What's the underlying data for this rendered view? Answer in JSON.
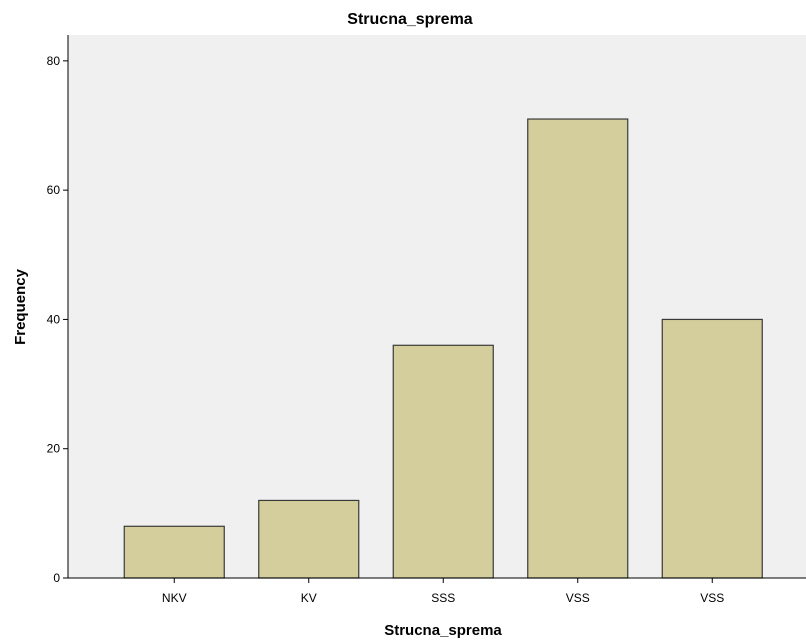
{
  "chart_data": {
    "type": "bar",
    "title": "Strucna_sprema",
    "xlabel": "Strucna_sprema",
    "ylabel": "Frequency",
    "categories": [
      "NKV",
      "KV",
      "SSS",
      "VSS",
      "VSS"
    ],
    "values": [
      8,
      12,
      36,
      71,
      40
    ],
    "ylim": [
      0,
      84
    ],
    "yticks": [
      0,
      20,
      40,
      60,
      80
    ],
    "grid": false,
    "legend": "none",
    "colors": {
      "plot_background": "#f0f0f0",
      "bar_fill": "#d3ce9b",
      "bar_stroke": "#3a3a3a",
      "axis": "#000000"
    }
  }
}
